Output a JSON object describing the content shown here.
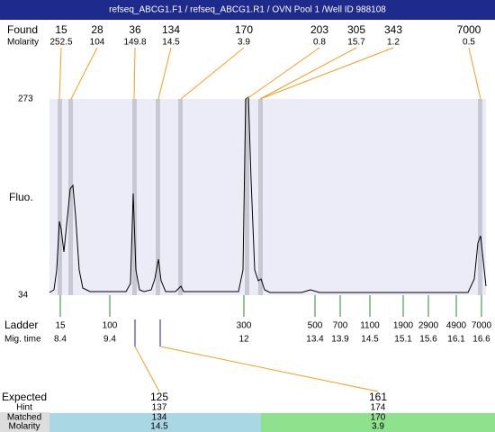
{
  "header": {
    "title": "refseq_ABCG1.F1 / refseq_ABCG1.R1 / OVN Pool 1 /Well ID 988108"
  },
  "found": {
    "label": "Found",
    "molarity_label": "Molarity",
    "peaks": [
      {
        "size": "15",
        "molarity": "252.5"
      },
      {
        "size": "28",
        "molarity": "104"
      },
      {
        "size": "36",
        "molarity": "149.8"
      },
      {
        "size": "134",
        "molarity": "14.5"
      },
      {
        "size": "170",
        "molarity": "3.9"
      },
      {
        "size": "203",
        "molarity": "0.8"
      },
      {
        "size": "305",
        "molarity": "15.7"
      },
      {
        "size": "343",
        "molarity": "1.2"
      },
      {
        "size": "7000",
        "molarity": "0.5"
      }
    ]
  },
  "plot": {
    "y_label": "Fluo.",
    "y_top": "273",
    "y_bottom": "34"
  },
  "ladder": {
    "label": "Ladder",
    "mig_label": "Mig. time",
    "items": [
      {
        "size": "15",
        "time": "8.4"
      },
      {
        "size": "100",
        "time": "9.4"
      },
      {
        "size": "300",
        "time": "12"
      },
      {
        "size": "500",
        "time": "13.4"
      },
      {
        "size": "700",
        "time": "13.9"
      },
      {
        "size": "1100",
        "time": "14.5"
      },
      {
        "size": "1900",
        "time": "15.1"
      },
      {
        "size": "2900",
        "time": "15.6"
      },
      {
        "size": "4900",
        "time": "16.1"
      },
      {
        "size": "7000",
        "time": "16.6"
      }
    ]
  },
  "expected": {
    "label": "Expected",
    "hint_label": "Hint",
    "matched_label": "Matched",
    "molarity_label": "Molarity",
    "items": [
      {
        "expected": "125",
        "hint": "137",
        "matched": "134",
        "molarity": "14.5"
      },
      {
        "expected": "161",
        "hint": "174",
        "matched": "170",
        "molarity": "3.9"
      }
    ]
  }
}
